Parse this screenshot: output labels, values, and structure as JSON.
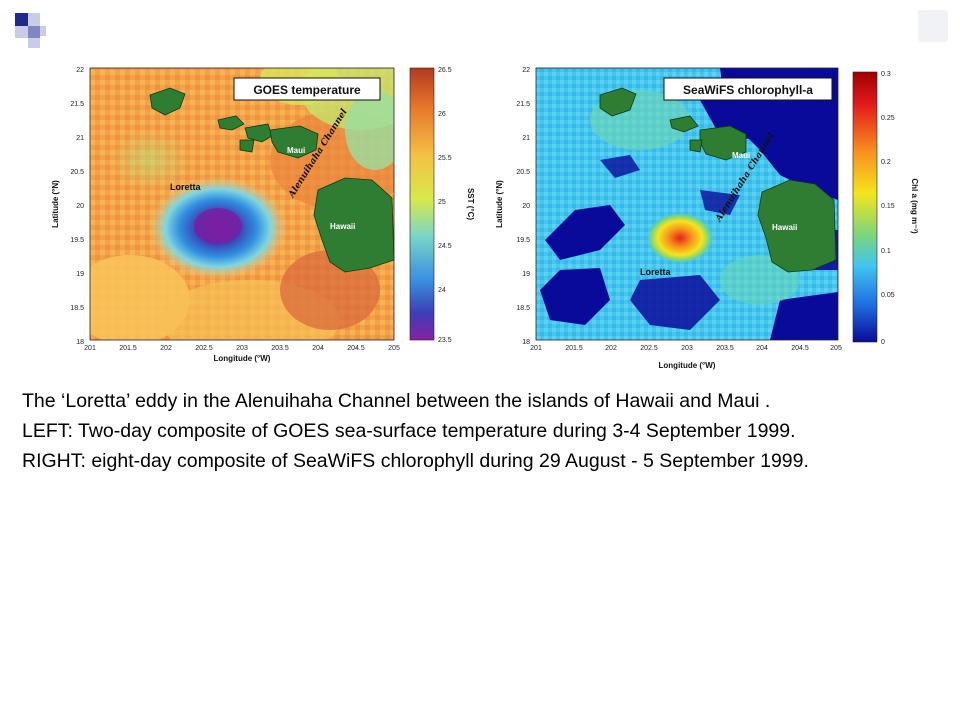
{
  "colors": {
    "logo_dark": "#1f2a8c",
    "logo_mid": "#7f86c4",
    "logo_light": "#c9cce8",
    "land": "#2e7d32"
  },
  "left_map": {
    "title": "GOES temperature",
    "xlabel": "Longitude (°W)",
    "ylabel": "Latitude (°N)",
    "xticks": [
      "201",
      "201.5",
      "202",
      "202.5",
      "203",
      "203.5",
      "204",
      "204.5",
      "205"
    ],
    "yticks": [
      "22",
      "21.5",
      "21",
      "20.5",
      "20",
      "19.5",
      "19",
      "18.5",
      "18"
    ],
    "labels": {
      "eddy": "Loretta",
      "island_small": "Maui",
      "island_big": "Hawaii",
      "channel": "Alenuihaha Channel"
    },
    "colorbar": {
      "label": "SST (°C)",
      "ticks": [
        "26.5",
        "26",
        "25.5",
        "25",
        "24.5",
        "24",
        "23.5"
      ]
    }
  },
  "right_map": {
    "title": "SeaWiFS chlorophyll-a",
    "xlabel": "Longitude (°W)",
    "ylabel": "Latitude (°N)",
    "xticks": [
      "201",
      "201.5",
      "202",
      "202.5",
      "203",
      "203.5",
      "204",
      "204.5",
      "205"
    ],
    "yticks": [
      "22",
      "21.5",
      "21",
      "20.5",
      "20",
      "19.5",
      "19",
      "18.5",
      "18"
    ],
    "labels": {
      "eddy": "Loretta",
      "island_small": "Maui",
      "island_big": "Hawaii",
      "channel": "Alenuihaha Channel"
    },
    "colorbar": {
      "label": "Chl a (mg m⁻³)",
      "ticks": [
        "0.3",
        "0.25",
        "0.2",
        "0.15",
        "0.1",
        "0.05",
        "0"
      ]
    }
  },
  "caption": {
    "line1": "The ‘Loretta’ eddy in the Alenuihaha Channel between the islands of Hawaii and Maui .",
    "line2": "LEFT: Two-day composite of GOES sea-surface temperature during 3-4 September 1999.",
    "line3": "RIGHT: eight-day composite of SeaWiFS chlorophyll during 29 August - 5 September 1999."
  }
}
